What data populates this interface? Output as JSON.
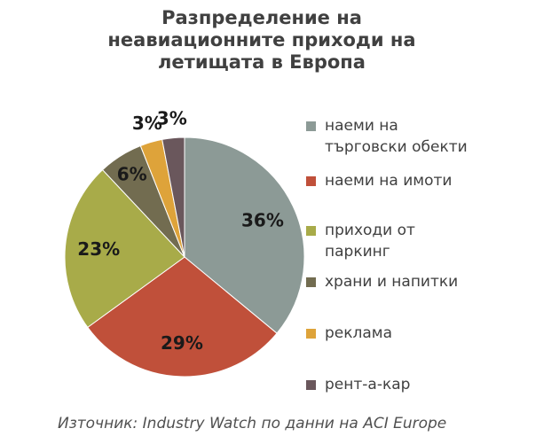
{
  "chart_data": {
    "type": "pie",
    "title_lines": [
      "Разпределение на",
      "неавиационните приходи на",
      "летищата в Европа"
    ],
    "slices": [
      {
        "label": "наеми на\nтърговски обекти",
        "value": 36,
        "display": "36%",
        "color": "#8c9a96"
      },
      {
        "label": "наеми на имоти",
        "value": 29,
        "display": "29%",
        "color": "#c0503a"
      },
      {
        "label": "приходи от\nпаркинг",
        "value": 23,
        "display": "23%",
        "color": "#a8ab49"
      },
      {
        "label": "храни и напитки",
        "value": 6,
        "display": "6%",
        "color": "#726c50"
      },
      {
        "label": "реклама",
        "value": 3,
        "display": "3%",
        "color": "#dea33a"
      },
      {
        "label": "рент-а-кар",
        "value": 3,
        "display": "3%",
        "color": "#6a575c"
      }
    ],
    "legend_position": "right"
  },
  "source": "Източник: Industry Watch по данни на ACI Europe"
}
